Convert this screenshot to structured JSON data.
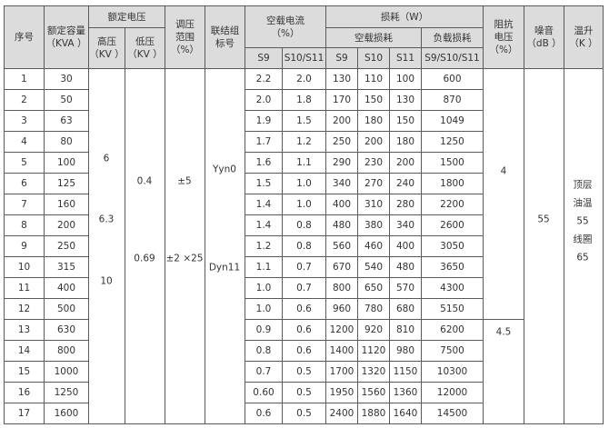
{
  "header": {
    "no": "序号",
    "capacity": "额定容量",
    "capacity_unit": "（KVA ）",
    "rated_voltage": "额定电压",
    "high_voltage": "高压",
    "high_voltage_unit": "（KV ）",
    "low_voltage": "低压",
    "low_voltage_unit": "（KV ）",
    "tap_range": "调压范围",
    "tap_range_unit": "（%）",
    "vector_group": "联结组标号",
    "noload_current": "空载电流",
    "noload_current_unit": "（%）",
    "current_sub": [
      "S9",
      "S10/S11"
    ],
    "losses": "损耗（W）",
    "noload_loss": "空载损耗",
    "load_loss": "负载损耗",
    "noload_loss_sub": [
      "S9",
      "S10",
      "S11"
    ],
    "load_loss_sub": "S9/S10/S11",
    "impedance": "阻抗电压",
    "impedance_unit": "（%）",
    "noise": "噪音",
    "noise_unit": "（dB ）",
    "temp_rise": "温升",
    "temp_rise_unit": "（K ）"
  },
  "merged": {
    "high_voltage": [
      "6",
      "6.3",
      "10"
    ],
    "low_voltage": [
      "0.4",
      "0.69"
    ],
    "tap_range": [
      "±5",
      "±2 ×25"
    ],
    "vector_group": [
      "Yyn0",
      "Dyn11"
    ],
    "impedance": [
      "4",
      "4.5"
    ],
    "noise": "55",
    "temp_rise": [
      "顶层",
      "油温",
      "55",
      "线圈",
      "65"
    ]
  },
  "rows": [
    [
      "1",
      "30",
      "2.2",
      "2.0",
      "130",
      "110",
      "100",
      "600"
    ],
    [
      "2",
      "50",
      "2.0",
      "1.8",
      "170",
      "150",
      "130",
      "870"
    ],
    [
      "3",
      "63",
      "1.9",
      "1.5",
      "200",
      "180",
      "150",
      "1049"
    ],
    [
      "4",
      "80",
      "1.7",
      "1.2",
      "250",
      "200",
      "180",
      "1250"
    ],
    [
      "5",
      "100",
      "1.6",
      "1.1",
      "290",
      "230",
      "200",
      "1500"
    ],
    [
      "6",
      "125",
      "1.5",
      "1.0",
      "340",
      "270",
      "240",
      "1800"
    ],
    [
      "7",
      "160",
      "1.4",
      "1.0",
      "400",
      "310",
      "280",
      "2200"
    ],
    [
      "8",
      "200",
      "1.4",
      "0.8",
      "480",
      "380",
      "340",
      "2600"
    ],
    [
      "9",
      "250",
      "1.2",
      "0.8",
      "560",
      "460",
      "400",
      "3050"
    ],
    [
      "10",
      "315",
      "1.1",
      "0.7",
      "670",
      "540",
      "480",
      "3650"
    ],
    [
      "11",
      "400",
      "1.0",
      "0.7",
      "800",
      "650",
      "570",
      "4300"
    ],
    [
      "12",
      "500",
      "1.0",
      "0.6",
      "960",
      "780",
      "680",
      "5150"
    ],
    [
      "13",
      "630",
      "0.9",
      "0.6",
      "1200",
      "920",
      "810",
      "6200"
    ],
    [
      "14",
      "800",
      "0.8",
      "0.6",
      "1400",
      "1120",
      "980",
      "7500"
    ],
    [
      "15",
      "1000",
      "0.7",
      "0.5",
      "1700",
      "1320",
      "1150",
      "10300"
    ],
    [
      "16",
      "1250",
      "0.60",
      "0.5",
      "1950",
      "1560",
      "1360",
      "12000"
    ],
    [
      "17",
      "1600",
      "0.6",
      "0.5",
      "2400",
      "1880",
      "1640",
      "14500"
    ]
  ],
  "colors": {
    "header_bg": "#dcdcdc",
    "border": "#5a5a5a"
  }
}
